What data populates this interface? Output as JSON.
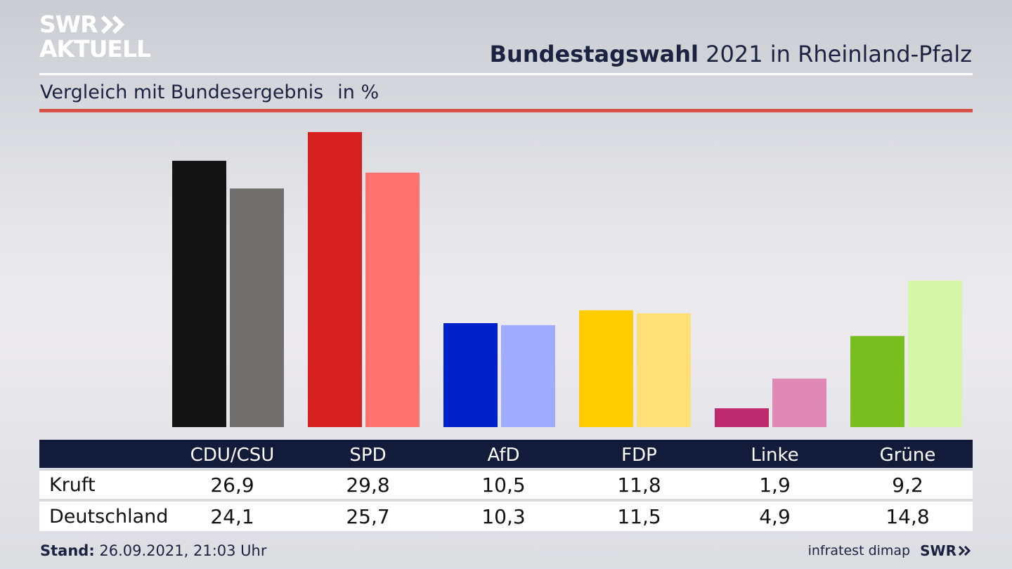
{
  "logo": {
    "line1": "SWR",
    "line2": "AKTUELL"
  },
  "title": {
    "bold": "Bundestagswahl",
    "rest": " 2021 in Rheinland-Pfalz"
  },
  "subtitle": {
    "text": "Vergleich mit Bundesergebnis",
    "unit": "in %"
  },
  "chart_data": {
    "type": "bar",
    "categories": [
      "CDU/CSU",
      "SPD",
      "AfD",
      "FDP",
      "Linke",
      "Grüne"
    ],
    "series": [
      {
        "name": "Kruft",
        "values": [
          26.9,
          29.8,
          10.5,
          11.8,
          1.9,
          9.2
        ],
        "colors": [
          "#141414",
          "#d61f1f",
          "#0020c8",
          "#ffcc00",
          "#bd2a6e",
          "#78be20"
        ]
      },
      {
        "name": "Deutschland",
        "values": [
          24.1,
          25.7,
          10.3,
          11.5,
          4.9,
          14.8
        ],
        "colors": [
          "#716f6d",
          "#ff726e",
          "#9eabff",
          "#ffe077",
          "#e089b6",
          "#d6f7a8"
        ]
      }
    ],
    "value_labels": {
      "Kruft": [
        "26,9",
        "29,8",
        "10,5",
        "11,8",
        "1,9",
        "9,2"
      ],
      "Deutschland": [
        "24,1",
        "25,7",
        "10,3",
        "11,5",
        "4,9",
        "14,8"
      ]
    },
    "ylim": [
      0,
      30
    ],
    "grid": false,
    "legend": "none"
  },
  "footer": {
    "stand_label": "Stand:",
    "stand_value": " 26.09.2021, 21:03 Uhr",
    "source": "infratest dimap",
    "brand": "SWR"
  }
}
